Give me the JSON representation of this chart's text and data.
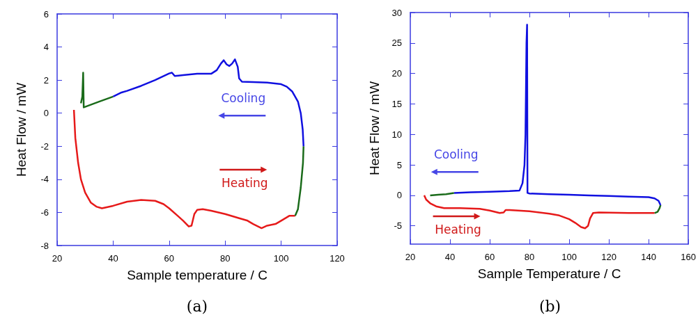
{
  "chart_data": [
    {
      "type": "line",
      "xlabel": "Sample temperature / C",
      "ylabel": "Heat Flow / mW",
      "xlim": [
        20,
        120
      ],
      "xticks": [
        20,
        40,
        60,
        80,
        100,
        120
      ],
      "ylim": [
        -8,
        6
      ],
      "yticks": [
        -8,
        -6,
        -4,
        -2,
        0,
        2,
        4,
        6
      ],
      "grid": false,
      "marker": "none",
      "line_style": "solid",
      "series": [
        {
          "color": "#e61a1a",
          "x": [
            26,
            26.5,
            27.5,
            28.5,
            30,
            32,
            34,
            36,
            40,
            45,
            50,
            55,
            58,
            60,
            63,
            65,
            67,
            68,
            69,
            70,
            72,
            75,
            80,
            85,
            88,
            90,
            93,
            95,
            98,
            100,
            103,
            105
          ],
          "values": [
            0.2,
            -1.5,
            -3,
            -4,
            -4.8,
            -5.4,
            -5.65,
            -5.75,
            -5.6,
            -5.35,
            -5.25,
            -5.3,
            -5.5,
            -5.75,
            -6.2,
            -6.5,
            -6.85,
            -6.8,
            -6.1,
            -5.85,
            -5.8,
            -5.9,
            -6.1,
            -6.35,
            -6.5,
            -6.7,
            -6.95,
            -6.8,
            -6.7,
            -6.5,
            -6.2,
            -6.2
          ]
        },
        {
          "color": "#1a6b1a",
          "x": [
            105,
            106,
            107,
            107.8,
            108
          ],
          "values": [
            -6.2,
            -5.8,
            -4.5,
            -3,
            -2
          ]
        },
        {
          "color": "#1010e0",
          "x": [
            108,
            107.7,
            107,
            106,
            104,
            102,
            100,
            95,
            90,
            86,
            85,
            84.5,
            83.5,
            82.5,
            81.5,
            80.5,
            79.5,
            78.5,
            77,
            75,
            70,
            65,
            62,
            61,
            60,
            55,
            50,
            45,
            43,
            40
          ],
          "values": [
            -2,
            -1,
            0,
            0.7,
            1.3,
            1.6,
            1.75,
            1.85,
            1.88,
            1.9,
            2.1,
            2.8,
            3.25,
            3.0,
            2.85,
            2.95,
            3.2,
            3.0,
            2.6,
            2.38,
            2.38,
            2.3,
            2.25,
            2.45,
            2.4,
            2.0,
            1.65,
            1.35,
            1.25,
            1.0
          ]
        },
        {
          "color": "#1a6b1a",
          "x": [
            40,
            35,
            30,
            29.5,
            29.3,
            29,
            28.5
          ],
          "values": [
            1.0,
            0.7,
            0.38,
            0.35,
            2.45,
            1.0,
            0.6
          ]
        }
      ],
      "annotations": [
        "Cooling",
        "Heating",
        "(a)"
      ]
    },
    {
      "type": "line",
      "xlabel": "Sample Temperature / C",
      "ylabel": "Heat Flow / mW",
      "xlim": [
        20,
        160
      ],
      "xticks": [
        20,
        40,
        60,
        80,
        100,
        120,
        140,
        160
      ],
      "ylim": [
        -8,
        30
      ],
      "yticks": [
        -5,
        0,
        5,
        10,
        15,
        20,
        25,
        30
      ],
      "grid": false,
      "marker": "none",
      "line_style": "solid",
      "series": [
        {
          "color": "#e61a1a",
          "x": [
            27,
            28,
            30,
            33,
            37,
            45,
            55,
            60,
            65,
            67,
            68,
            70,
            80,
            90,
            95,
            100,
            103,
            106,
            108,
            109.5,
            110.5,
            112,
            115,
            130,
            143
          ],
          "values": [
            0,
            -0.7,
            -1.3,
            -1.8,
            -2.1,
            -2.1,
            -2.2,
            -2.5,
            -2.9,
            -2.8,
            -2.4,
            -2.4,
            -2.6,
            -3.0,
            -3.3,
            -3.9,
            -4.5,
            -5.2,
            -5.4,
            -5.0,
            -3.8,
            -2.9,
            -2.8,
            -2.9,
            -2.9
          ]
        },
        {
          "color": "#1a6b1a",
          "x": [
            143,
            144.5,
            145.5,
            146
          ],
          "values": [
            -2.9,
            -2.7,
            -2.1,
            -1.6
          ]
        },
        {
          "color": "#1010e0",
          "x": [
            146,
            145,
            143,
            140,
            130,
            120,
            110,
            100,
            90,
            80,
            79,
            78.8,
            78.5,
            78,
            77.5,
            76.5,
            75,
            70,
            60,
            50,
            42
          ],
          "values": [
            -1.6,
            -0.9,
            -0.5,
            -0.3,
            -0.2,
            -0.1,
            0,
            0.1,
            0.2,
            0.3,
            0.4,
            28,
            25,
            10,
            5,
            2,
            0.8,
            0.7,
            0.6,
            0.5,
            0.4
          ]
        },
        {
          "color": "#1a6b1a",
          "x": [
            42,
            38,
            34,
            30
          ],
          "values": [
            0.4,
            0.2,
            0.1,
            0
          ]
        }
      ],
      "annotations": [
        "Cooling",
        "Heating",
        "(b)"
      ]
    }
  ]
}
